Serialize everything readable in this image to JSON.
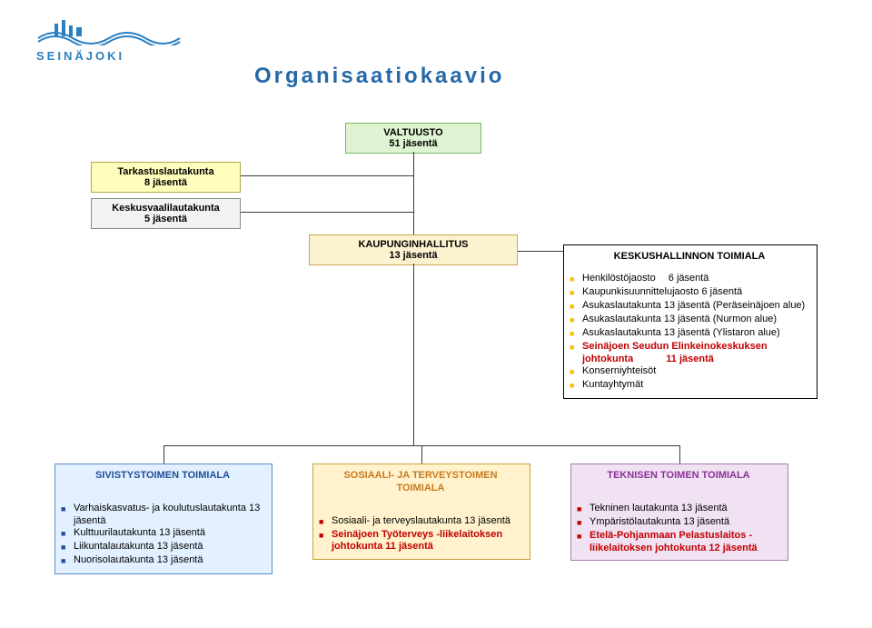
{
  "logo_text": "SEINÄJOKI",
  "title": "Organisaatiokaavio",
  "colors": {
    "valtuusto_bg": "#dff4d2",
    "valtuusto_border": "#7ab561",
    "tarkastus_bg": "#fefdbb",
    "tarkastus_border": "#b0a94a",
    "kv_bg": "#f2f2f2",
    "kv_border": "#888888",
    "hallitus_bg": "#fdf2d0",
    "hallitus_border": "#c9a752",
    "keskus_bg": "#ffffff",
    "keskus_marker": "#ffc000",
    "siv_bg": "#e2f0ff",
    "siv_border": "#5a8dc9",
    "siv_header": "#1f4e9b",
    "siv_marker": "#1f4e9b",
    "sos_bg": "#fff2cc",
    "sos_border": "#c8a33c",
    "sos_header": "#c87a1f",
    "sos_marker": "#c00000",
    "tek_bg": "#f0e2f2",
    "tek_border": "#a97bb0",
    "tek_header": "#8c2f99",
    "tek_marker": "#c00000",
    "keskus_highlight": "#c00000",
    "sos_highlight": "#c00000",
    "tek_highlight": "#c00000"
  },
  "valtuusto": {
    "l1": "VALTUUSTO",
    "l2": "51 jäsentä"
  },
  "tarkastus": {
    "l1": "Tarkastuslautakunta",
    "l2": "8 jäsentä"
  },
  "kvaali": {
    "l1": "Keskusvaalilautakunta",
    "l2": "5 jäsentä"
  },
  "hallitus": {
    "l1": "KAUPUNGINHALLITUS",
    "l2": "13 jäsentä"
  },
  "keskus": {
    "header": "KESKUSHALLINNON TOIMIALA",
    "items": [
      {
        "t": "Henkilöstöjaosto  6 jäsentä"
      },
      {
        "t": "Kaupunkisuunnittelujaosto 6 jäsentä"
      },
      {
        "t": "Asukaslautakunta 13 jäsentä (Peräseinäjoen alue)"
      },
      {
        "t": "Asukaslautakunta 13 jäsentä (Nurmon alue)"
      },
      {
        "t": "Asukaslautakunta 13 jäsentä (Ylistaron alue)"
      },
      {
        "t": "Seinäjoen Seudun Elinkeinokeskuksen johtokunta    11 jäsentä",
        "hl": true
      },
      {
        "t": "Konserniyhteisöt"
      },
      {
        "t": "Kuntayhtymät"
      }
    ]
  },
  "siv": {
    "header": "SIVISTYSTOIMEN TOIMIALA",
    "items": [
      {
        "t": "Varhaiskasvatus- ja koulutuslautakunta 13 jäsentä"
      },
      {
        "t": "Kulttuurilautakunta 13 jäsentä"
      },
      {
        "t": "Liikuntalautakunta  13 jäsentä"
      },
      {
        "t": "Nuorisolautakunta  13 jäsentä"
      }
    ]
  },
  "sos": {
    "header": "SOSIAALI- JA TERVEYSTOIMEN TOIMIALA",
    "items": [
      {
        "t": "Sosiaali- ja terveyslautakunta 13 jäsentä"
      },
      {
        "t": "Seinäjoen Työterveys -liikelaitoksen johtokunta 11 jäsentä",
        "hl": true
      }
    ]
  },
  "tek": {
    "header": "TEKNISEN TOIMEN TOIMIALA",
    "items": [
      {
        "t": "Tekninen lautakunta   13 jäsentä"
      },
      {
        "t": "Ympäristölautakunta  13 jäsentä"
      },
      {
        "t": "Etelä-Pohjanmaan Pelastuslaitos -liikelaitoksen johtokunta 12 jäsentä",
        "hl": true
      }
    ]
  }
}
